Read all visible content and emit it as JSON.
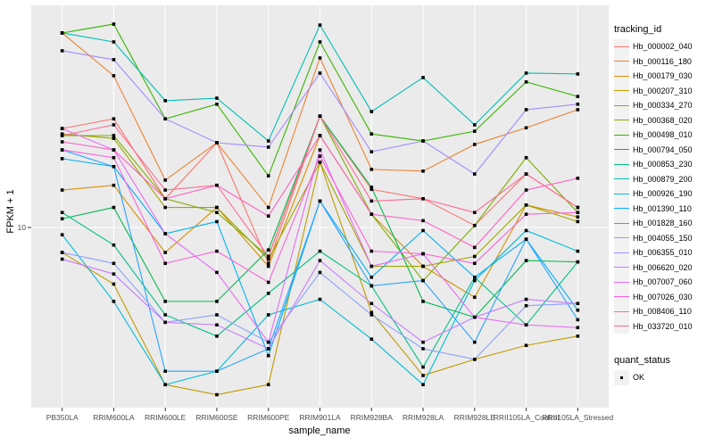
{
  "chart_data": {
    "type": "line",
    "xlabel": "sample_name",
    "ylabel": "FPKM + 1",
    "y_scale": "log10",
    "y_ticks": [
      {
        "value": 10,
        "label": "10"
      }
    ],
    "categories": [
      "PB350LA",
      "RRIM600LA",
      "RRIM600LE",
      "RRIM600SE",
      "RRIM600PE",
      "RRIM901LA",
      "RRIM928BA",
      "RRIM928LA",
      "RRIM928LE",
      "RRII105LA_Control",
      "RRII105LA_Stressed"
    ],
    "legend_position": "right",
    "point_shape": "filled-square",
    "point_color": "#000000",
    "series": [
      {
        "id": "Hb_000002_040",
        "color": "#F8766D",
        "values": [
          26.7,
          29.4,
          13.3,
          23.2,
          7.0,
          30.2,
          14.6,
          13.3,
          10.2,
          17.0,
          12.2
        ]
      },
      {
        "id": "Hb_000116_180",
        "color": "#EA8331",
        "values": [
          69,
          45.1,
          16.0,
          23.2,
          12.2,
          53.8,
          17.8,
          17.5,
          22.8,
          26.9,
          32.2
        ]
      },
      {
        "id": "Hb_000179_030",
        "color": "#D89000",
        "values": [
          14.5,
          15.2,
          7.8,
          12.2,
          6.8,
          24.9,
          11.4,
          6.8,
          5.0,
          12.5,
          11.1
        ]
      },
      {
        "id": "Hb_000207_310",
        "color": "#C09B00",
        "values": [
          7.8,
          5.7,
          2.1,
          1.9,
          2.1,
          19.1,
          4.3,
          2.3,
          2.7,
          3.1,
          3.4
        ]
      },
      {
        "id": "Hb_000334_270",
        "color": "#A3A500",
        "values": [
          25.3,
          24.2,
          12.2,
          12.2,
          7.3,
          19.1,
          6.8,
          6.8,
          7.5,
          12.5,
          10.6
        ]
      },
      {
        "id": "Hb_000368_020",
        "color": "#7CAE00",
        "values": [
          24.9,
          24.9,
          13.3,
          11.6,
          7.5,
          30.2,
          11.4,
          5.9,
          10.2,
          20.0,
          11.6
        ]
      },
      {
        "id": "Hb_000498_010",
        "color": "#39B600",
        "values": [
          69,
          75.3,
          29.4,
          34,
          16.7,
          63.1,
          25.3,
          23.6,
          26,
          42.4,
          36.7
        ]
      },
      {
        "id": "Hb_000794_050",
        "color": "#00BB4E",
        "values": [
          10.9,
          12.2,
          4.8,
          4.8,
          8.0,
          30.2,
          14.9,
          4.8,
          4.1,
          7.2,
          7.1
        ]
      },
      {
        "id": "Hb_000853_230",
        "color": "#00C087",
        "values": [
          11.6,
          8.4,
          4.2,
          3.4,
          5.2,
          7.9,
          5.6,
          2.5,
          6.1,
          3.8,
          7.1
        ]
      },
      {
        "id": "Hb_000879_200",
        "color": "#00C0B2",
        "values": [
          69,
          63.1,
          35.2,
          36.1,
          23.6,
          74.6,
          31.6,
          44.3,
          27.7,
          46.3,
          45.9
        ]
      },
      {
        "id": "Hb_000926_190",
        "color": "#00BCD8",
        "values": [
          9.3,
          4.8,
          2.1,
          2.4,
          4.2,
          4.9,
          3.3,
          2.1,
          5.9,
          9.7,
          7.9
        ]
      },
      {
        "id": "Hb_001390_110",
        "color": "#00B0F6",
        "values": [
          19.8,
          18.3,
          9.4,
          10.6,
          2.8,
          13,
          6.1,
          9.7,
          6.1,
          8.9,
          4.4
        ]
      },
      {
        "id": "Hb_001828_160",
        "color": "#29A3FF",
        "values": [
          21.6,
          18.3,
          2.4,
          2.4,
          3.0,
          13,
          5.6,
          5.9,
          3.2,
          8.9,
          4.0
        ]
      },
      {
        "id": "Hb_004055_150",
        "color": "#8FA1FF",
        "values": [
          7.8,
          7.0,
          3.9,
          4.2,
          3.2,
          6.4,
          4.2,
          3.0,
          2.7,
          4.6,
          4.7
        ]
      },
      {
        "id": "Hb_006355_010",
        "color": "#A58AFF",
        "values": [
          57.8,
          52.9,
          29.4,
          23.2,
          22.2,
          46.3,
          21.2,
          23.6,
          17,
          32.2,
          34
        ]
      },
      {
        "id": "Hb_006620_020",
        "color": "#C77CFF",
        "values": [
          7.3,
          6.3,
          3.9,
          3.8,
          3.0,
          7.2,
          4.7,
          3.2,
          4.1,
          4.9,
          4.7
        ]
      },
      {
        "id": "Hb_007007_060",
        "color": "#E76BF3",
        "values": [
          26.7,
          21.6,
          9.4,
          6.4,
          3.2,
          21.6,
          6.8,
          7.7,
          4.1,
          3.8,
          3.7
        ]
      },
      {
        "id": "Hb_007026_030",
        "color": "#FA62DB",
        "values": [
          21.6,
          20,
          7.0,
          7.9,
          5.8,
          20.3,
          7.9,
          7.7,
          7.0,
          11.4,
          11.6
        ]
      },
      {
        "id": "Hb_008406_110",
        "color": "#FF61C3",
        "values": [
          23.4,
          21.6,
          13.3,
          15.2,
          11.2,
          24.9,
          11.4,
          10.7,
          8.2,
          14.5,
          16.3
        ]
      },
      {
        "id": "Hb_033720_010",
        "color": "#FF6A98",
        "values": [
          24.9,
          27.7,
          14.5,
          15.2,
          7.5,
          30.2,
          13,
          13.3,
          11.6,
          17,
          12.2
        ]
      }
    ]
  },
  "legend_tracking": {
    "title": "tracking_id"
  },
  "legend_quant": {
    "title": "quant_status",
    "items": [
      {
        "label": "OK"
      }
    ]
  },
  "colors": {
    "background": "#FFFFFF",
    "panel_bg": "#EBEBEB",
    "grid": "#FFFFFF",
    "tick": "#333333",
    "tick_label": "#4D4D4D",
    "legend_key_bg": "#F2F2F2",
    "point": "#000000"
  }
}
